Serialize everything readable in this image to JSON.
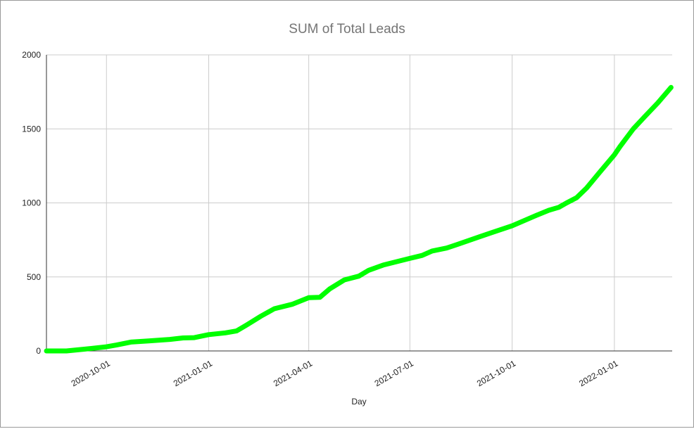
{
  "chart_data": {
    "type": "line",
    "title": "SUM of Total Leads",
    "x_label": "Day",
    "x": [
      "2020-08-08",
      "2020-08-26",
      "2020-09-11",
      "2020-10-01",
      "2020-10-10",
      "2020-10-23",
      "2020-11-08",
      "2020-11-27",
      "2020-12-09",
      "2020-12-19",
      "2021-01-01",
      "2021-01-16",
      "2021-01-26",
      "2021-02-04",
      "2021-02-17",
      "2021-03-01",
      "2021-03-17",
      "2021-04-01",
      "2021-04-11",
      "2021-04-20",
      "2021-05-03",
      "2021-05-16",
      "2021-05-25",
      "2021-06-07",
      "2021-07-01",
      "2021-07-12",
      "2021-07-21",
      "2021-08-03",
      "2021-08-13",
      "2021-09-03",
      "2021-09-13",
      "2021-10-01",
      "2021-10-21",
      "2021-11-03",
      "2021-11-12",
      "2021-11-19",
      "2021-11-28",
      "2021-12-07",
      "2021-12-18",
      "2022-01-01",
      "2022-01-06",
      "2022-01-18",
      "2022-01-28",
      "2022-02-09",
      "2022-02-21"
    ],
    "series": [
      {
        "name": "SUM of Total Leads",
        "color": "#00ff00",
        "values": [
          0,
          0,
          12,
          28,
          40,
          60,
          68,
          78,
          88,
          90,
          110,
          122,
          135,
          175,
          235,
          285,
          315,
          360,
          362,
          420,
          480,
          505,
          545,
          580,
          625,
          645,
          675,
          695,
          720,
          775,
          800,
          845,
          910,
          950,
          970,
          1000,
          1035,
          1100,
          1200,
          1325,
          1380,
          1500,
          1580,
          1675,
          1780
        ]
      }
    ],
    "xlim": [
      "2020-08-08",
      "2022-02-22"
    ],
    "xticks": [
      "2020-10-01",
      "2021-01-01",
      "2021-04-01",
      "2021-07-01",
      "2021-10-01",
      "2022-01-01"
    ],
    "ylim": [
      0,
      2000
    ],
    "yticks": [
      0,
      500,
      1000,
      1500,
      2000
    ],
    "grid": true
  }
}
